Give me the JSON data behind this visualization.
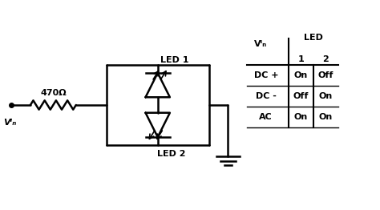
{
  "bg_color": "#ffffff",
  "line_color": "#000000",
  "text_color": "#000000",
  "resistor_label": "470Ω",
  "vin_label": "Vᴵₙ",
  "led1_label": "LED 1",
  "led2_label": "LED 2",
  "table_header_vin": "Vᴵₙ",
  "table_header_led": "LED",
  "table_col1": "1",
  "table_col2": "2",
  "table_rows": [
    [
      "DC +",
      "On",
      "Off"
    ],
    [
      "DC -",
      "Off",
      "On"
    ],
    [
      "AC",
      "On",
      "On"
    ]
  ],
  "figsize": [
    4.74,
    2.62
  ],
  "dpi": 100
}
